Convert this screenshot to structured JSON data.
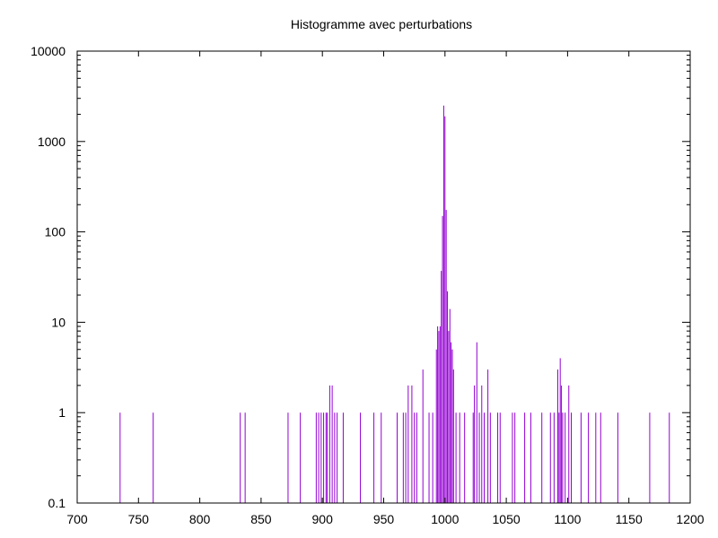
{
  "chart_data": {
    "type": "bar",
    "title": "Histogramme avec perturbations",
    "xlabel": "",
    "ylabel": "",
    "xlim": [
      700,
      1200
    ],
    "ylim": [
      0.1,
      10000
    ],
    "yscale": "log",
    "grid": false,
    "bar_color": "#9400d3",
    "x_ticks": [
      {
        "value": 700,
        "label": "700"
      },
      {
        "value": 750,
        "label": "750"
      },
      {
        "value": 800,
        "label": "800"
      },
      {
        "value": 850,
        "label": "850"
      },
      {
        "value": 900,
        "label": "900"
      },
      {
        "value": 950,
        "label": "950"
      },
      {
        "value": 1000,
        "label": "1000"
      },
      {
        "value": 1050,
        "label": "1050"
      },
      {
        "value": 1100,
        "label": "1100"
      },
      {
        "value": 1150,
        "label": "1150"
      },
      {
        "value": 1200,
        "label": "1200"
      }
    ],
    "y_ticks": [
      {
        "value": 0.1,
        "label": "0.1"
      },
      {
        "value": 1,
        "label": "1"
      },
      {
        "value": 10,
        "label": "10"
      },
      {
        "value": 100,
        "label": "100"
      },
      {
        "value": 1000,
        "label": "1000"
      },
      {
        "value": 10000,
        "label": "10000"
      }
    ],
    "bins": [
      {
        "x": 735,
        "count": 1
      },
      {
        "x": 762,
        "count": 1
      },
      {
        "x": 833,
        "count": 1
      },
      {
        "x": 837,
        "count": 1
      },
      {
        "x": 872,
        "count": 1
      },
      {
        "x": 882,
        "count": 1
      },
      {
        "x": 895,
        "count": 1
      },
      {
        "x": 897,
        "count": 1
      },
      {
        "x": 899,
        "count": 1
      },
      {
        "x": 901,
        "count": 1
      },
      {
        "x": 903,
        "count": 1
      },
      {
        "x": 904,
        "count": 1
      },
      {
        "x": 906,
        "count": 2
      },
      {
        "x": 908,
        "count": 2
      },
      {
        "x": 910,
        "count": 1
      },
      {
        "x": 912,
        "count": 1
      },
      {
        "x": 917,
        "count": 1
      },
      {
        "x": 931,
        "count": 1
      },
      {
        "x": 942,
        "count": 1
      },
      {
        "x": 948,
        "count": 1
      },
      {
        "x": 961,
        "count": 1
      },
      {
        "x": 966,
        "count": 1
      },
      {
        "x": 968,
        "count": 1
      },
      {
        "x": 970,
        "count": 2
      },
      {
        "x": 973,
        "count": 2
      },
      {
        "x": 975,
        "count": 1
      },
      {
        "x": 977,
        "count": 1
      },
      {
        "x": 982,
        "count": 3
      },
      {
        "x": 987,
        "count": 1
      },
      {
        "x": 990,
        "count": 1
      },
      {
        "x": 993,
        "count": 5
      },
      {
        "x": 994,
        "count": 9
      },
      {
        "x": 995,
        "count": 8
      },
      {
        "x": 996,
        "count": 9
      },
      {
        "x": 997,
        "count": 37
      },
      {
        "x": 998,
        "count": 150
      },
      {
        "x": 999,
        "count": 2500
      },
      {
        "x": 1000,
        "count": 1900
      },
      {
        "x": 1001,
        "count": 175
      },
      {
        "x": 1002,
        "count": 22
      },
      {
        "x": 1003,
        "count": 8
      },
      {
        "x": 1004,
        "count": 14
      },
      {
        "x": 1005,
        "count": 6
      },
      {
        "x": 1006,
        "count": 5
      },
      {
        "x": 1007,
        "count": 3
      },
      {
        "x": 1009,
        "count": 1
      },
      {
        "x": 1012,
        "count": 1
      },
      {
        "x": 1016,
        "count": 1
      },
      {
        "x": 1023,
        "count": 1
      },
      {
        "x": 1024,
        "count": 2
      },
      {
        "x": 1026,
        "count": 6
      },
      {
        "x": 1028,
        "count": 1
      },
      {
        "x": 1030,
        "count": 2
      },
      {
        "x": 1032,
        "count": 1
      },
      {
        "x": 1035,
        "count": 3
      },
      {
        "x": 1037,
        "count": 1
      },
      {
        "x": 1043,
        "count": 1
      },
      {
        "x": 1045,
        "count": 1
      },
      {
        "x": 1055,
        "count": 1
      },
      {
        "x": 1057,
        "count": 1
      },
      {
        "x": 1065,
        "count": 1
      },
      {
        "x": 1070,
        "count": 1
      },
      {
        "x": 1079,
        "count": 1
      },
      {
        "x": 1086,
        "count": 1
      },
      {
        "x": 1089,
        "count": 1
      },
      {
        "x": 1092,
        "count": 3
      },
      {
        "x": 1093,
        "count": 1
      },
      {
        "x": 1094,
        "count": 4
      },
      {
        "x": 1095,
        "count": 2
      },
      {
        "x": 1096,
        "count": 1
      },
      {
        "x": 1098,
        "count": 1
      },
      {
        "x": 1101,
        "count": 2
      },
      {
        "x": 1103,
        "count": 1
      },
      {
        "x": 1111,
        "count": 1
      },
      {
        "x": 1117,
        "count": 1
      },
      {
        "x": 1123,
        "count": 1
      },
      {
        "x": 1127,
        "count": 1
      },
      {
        "x": 1141,
        "count": 1
      },
      {
        "x": 1167,
        "count": 1
      },
      {
        "x": 1183,
        "count": 1
      }
    ]
  }
}
